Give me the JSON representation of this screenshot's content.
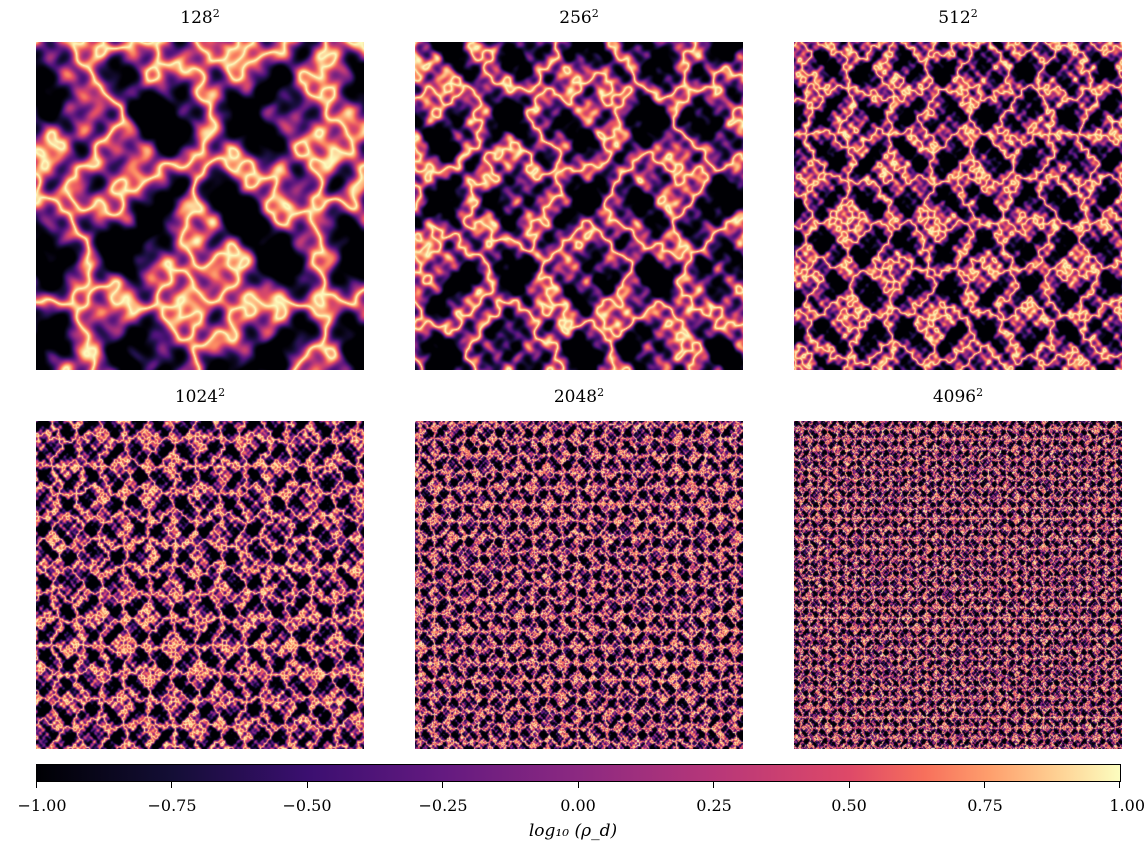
{
  "chart_data": {
    "type": "heatmap",
    "colormap": "magma",
    "panels": [
      {
        "resolution": "128",
        "exponent": "2",
        "label": "128²"
      },
      {
        "resolution": "256",
        "exponent": "2",
        "label": "256²"
      },
      {
        "resolution": "512",
        "exponent": "2",
        "label": "512²"
      },
      {
        "resolution": "1024",
        "exponent": "2",
        "label": "1024²"
      },
      {
        "resolution": "2048",
        "exponent": "2",
        "label": "2048²"
      },
      {
        "resolution": "4096",
        "exponent": "2",
        "label": "4096²"
      }
    ],
    "colorbar": {
      "label": "log₁₀ (ρ_d)",
      "range": [
        -1.0,
        1.0
      ],
      "ticks": [
        "−1.00",
        "−0.75",
        "−0.50",
        "−0.25",
        "0.00",
        "0.25",
        "0.50",
        "0.75",
        "1.00"
      ]
    }
  }
}
